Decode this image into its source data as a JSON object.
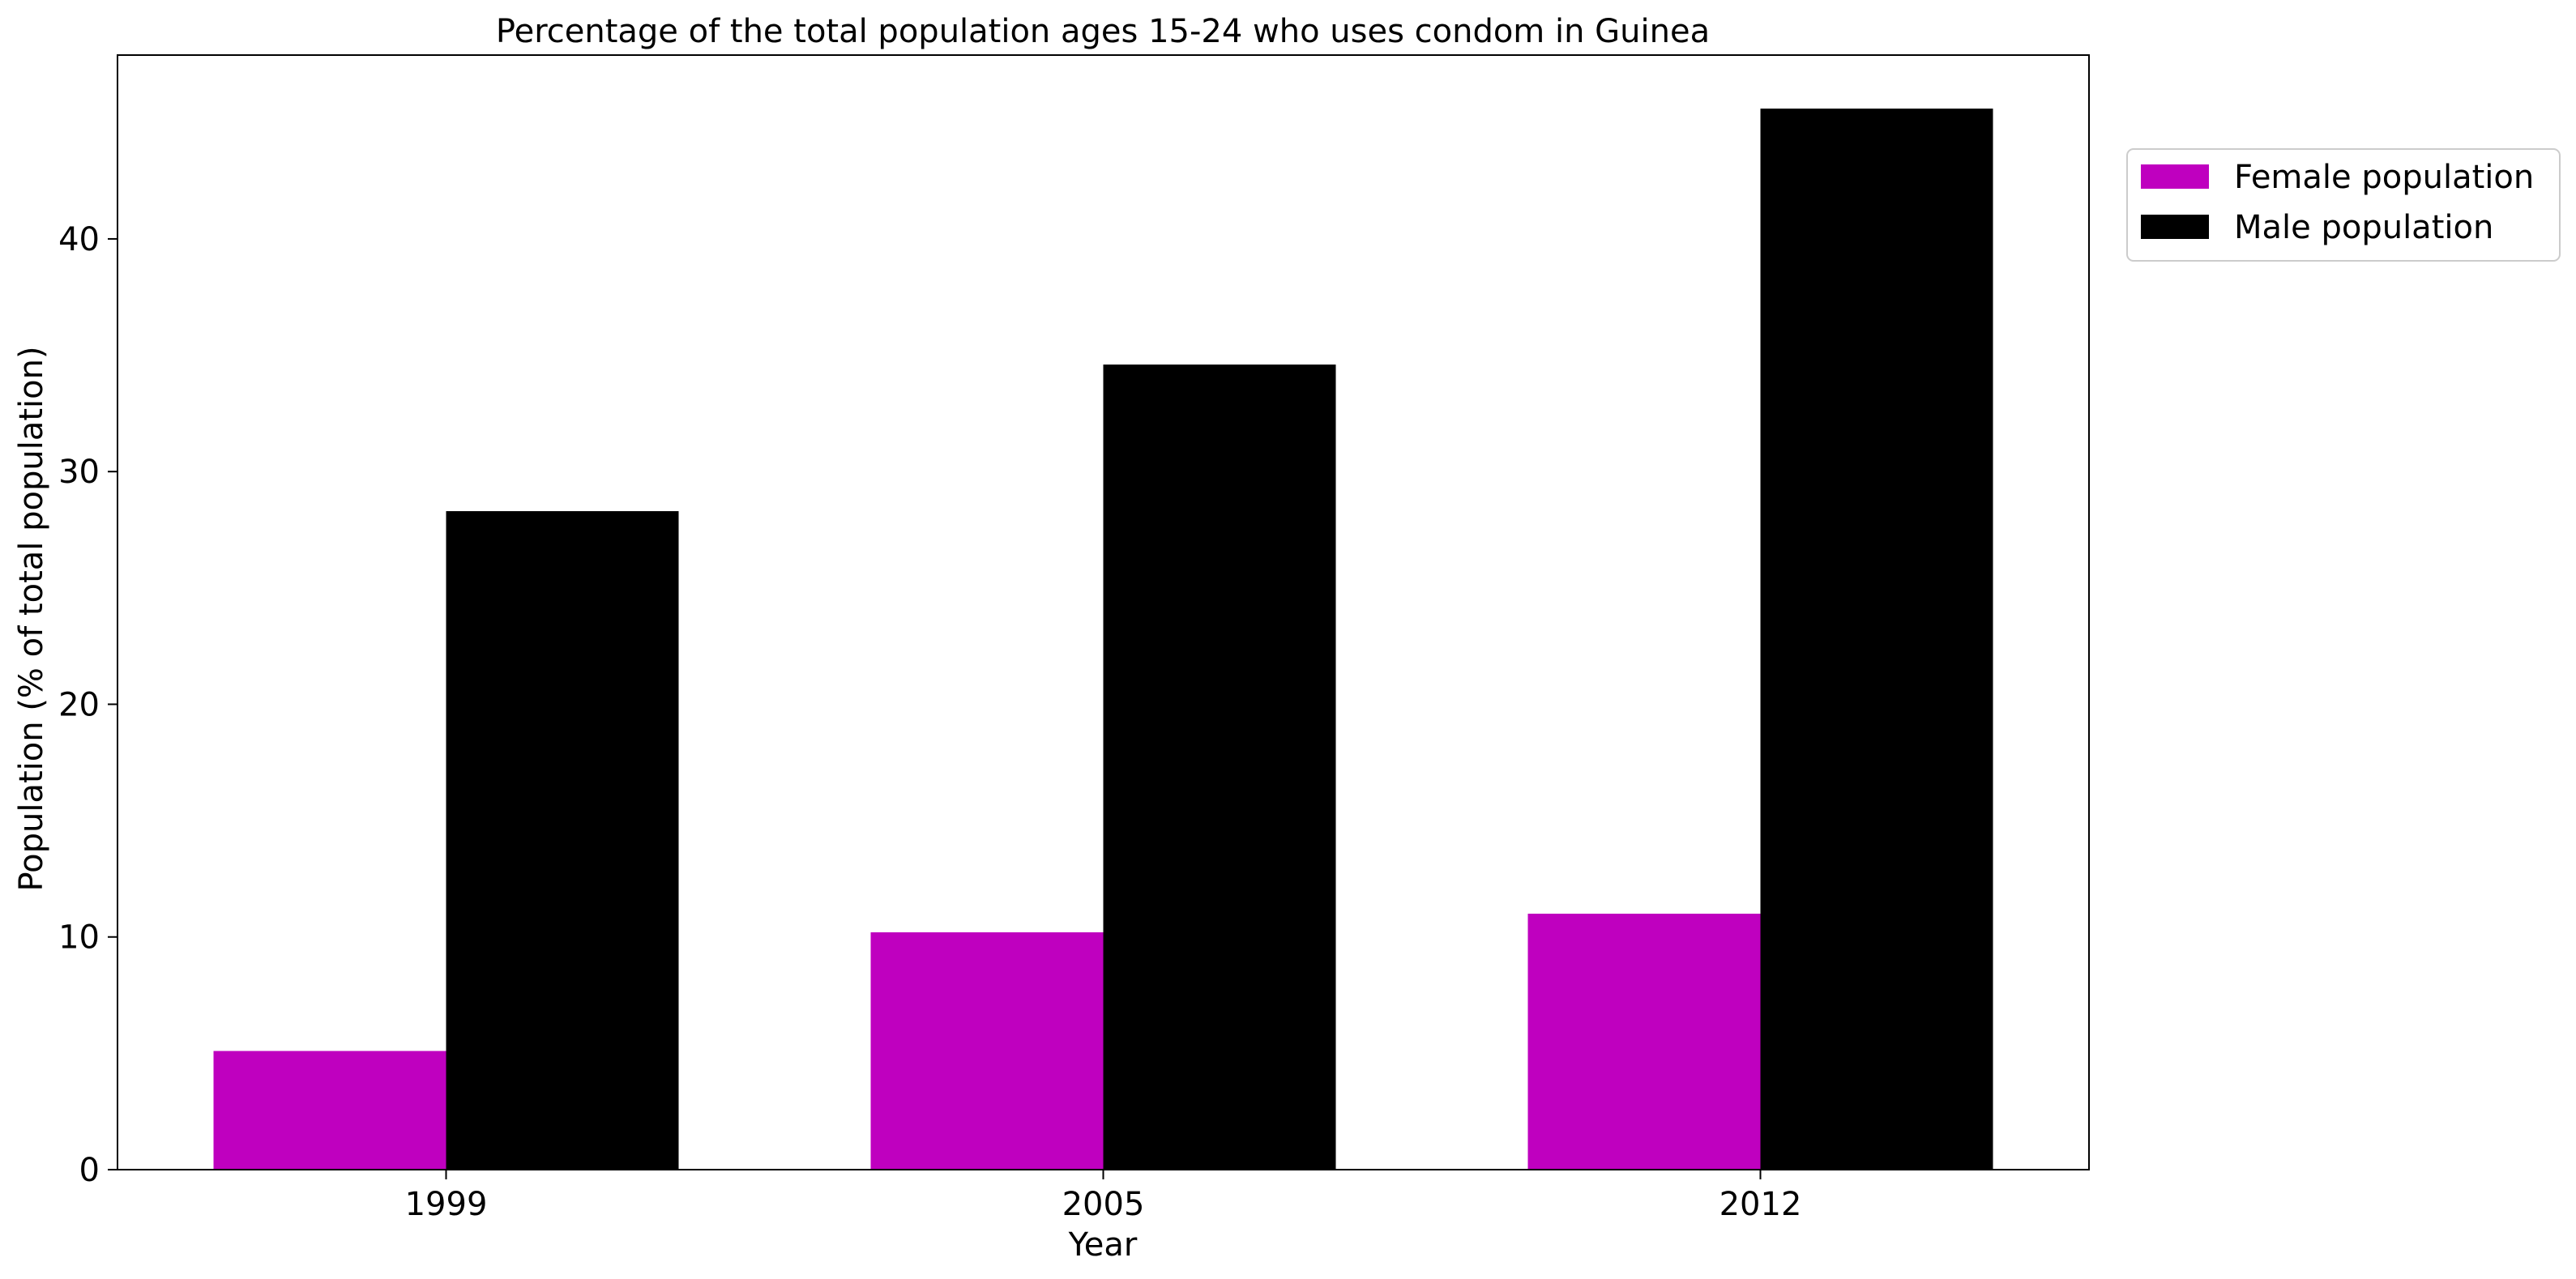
{
  "chart_data": {
    "type": "bar",
    "title": "Percentage of the total population ages 15-24 who uses condom in Guinea",
    "xlabel": "Year",
    "ylabel": "Population (% of total population)",
    "categories": [
      "1999",
      "2005",
      "2012"
    ],
    "series": [
      {
        "name": "Female population",
        "values": [
          5.1,
          10.2,
          11.0
        ],
        "color": "#bf00bf"
      },
      {
        "name": "Male population",
        "values": [
          28.3,
          34.6,
          45.6
        ],
        "color": "#000000"
      }
    ],
    "ylim": [
      0,
      47.9
    ],
    "yticks": [
      0,
      10,
      20,
      30,
      40
    ],
    "grid": false,
    "legend_position": "outside-top-right"
  }
}
